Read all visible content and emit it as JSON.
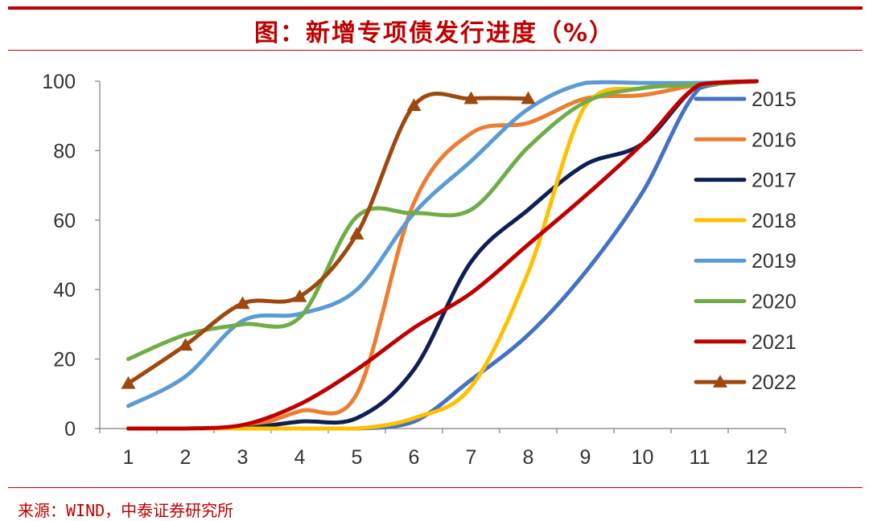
{
  "title": "图：新增专项债发行进度（%）",
  "source": "来源：WIND，中泰证券研究所",
  "colors": {
    "accent": "#c00000"
  },
  "chart_data": {
    "type": "line",
    "title": "图：新增专项债发行进度（%）",
    "xlabel": "",
    "ylabel": "",
    "x": [
      1,
      2,
      3,
      4,
      5,
      6,
      7,
      8,
      9,
      10,
      11,
      12
    ],
    "xlim": [
      1,
      12
    ],
    "ylim": [
      0,
      100
    ],
    "yticks": [
      0,
      20,
      40,
      60,
      80,
      100
    ],
    "legend_position": "right",
    "grid": false,
    "series": [
      {
        "name": "2015",
        "color": "#4472c4",
        "marker": "none",
        "values": [
          0,
          0,
          0,
          0,
          0,
          2,
          14,
          27,
          45,
          68,
          98,
          100
        ]
      },
      {
        "name": "2016",
        "color": "#ed7d31",
        "marker": "none",
        "values": [
          0,
          0,
          0,
          5,
          10,
          65,
          85,
          88,
          95,
          96,
          99,
          100
        ]
      },
      {
        "name": "2017",
        "color": "#0d2055",
        "marker": "none",
        "values": [
          0,
          0,
          0,
          2,
          3,
          17,
          48,
          63,
          76,
          82,
          99,
          100
        ]
      },
      {
        "name": "2018",
        "color": "#ffc000",
        "marker": "none",
        "values": [
          0,
          0,
          0,
          0,
          0,
          3,
          12,
          45,
          93,
          98,
          99,
          100
        ]
      },
      {
        "name": "2019",
        "color": "#5b9bd5",
        "marker": "none",
        "values": [
          6.5,
          15,
          31,
          33,
          40,
          62,
          77,
          92,
          99.5,
          99.5,
          99.5,
          100
        ]
      },
      {
        "name": "2020",
        "color": "#70ad47",
        "marker": "none",
        "values": [
          20,
          27,
          30,
          32,
          61,
          62,
          63,
          81,
          94,
          98,
          99,
          100
        ]
      },
      {
        "name": "2021",
        "color": "#c00000",
        "marker": "none",
        "values": [
          0,
          0,
          1,
          7,
          17,
          29,
          39,
          53,
          67,
          82,
          99,
          100
        ]
      },
      {
        "name": "2022",
        "color": "#9e480e",
        "marker": "triangle",
        "values": [
          13,
          24,
          36,
          38,
          56,
          93,
          95,
          95,
          null,
          null,
          null,
          null
        ]
      }
    ]
  }
}
